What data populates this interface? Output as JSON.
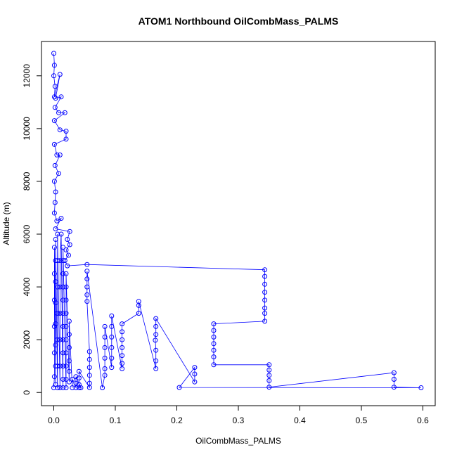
{
  "chart_data": {
    "type": "scatter",
    "title": "ATOM1 Northbound OilCombMass_PALMS",
    "xlabel": "OilCombMass_PALMS",
    "ylabel": "Altitude (m)",
    "xlim": [
      -0.02,
      0.62
    ],
    "ylim": [
      -500,
      13300
    ],
    "xticks": [
      0,
      0.1,
      0.2,
      0.3,
      0.4,
      0.5,
      0.6
    ],
    "xtick_labels": [
      "0.0",
      "0.1",
      "0.2",
      "0.3",
      "0.4",
      "0.5",
      "0.6"
    ],
    "yticks": [
      0,
      2000,
      4000,
      6000,
      8000,
      10000,
      12000
    ],
    "ytick_labels": [
      "0",
      "2000",
      "4000",
      "6000",
      "8000",
      "10000",
      "12000"
    ],
    "grid": false,
    "legend": "none",
    "marker": "open-circle",
    "connected": true,
    "series_color": "#0000ff",
    "points": [
      [
        0.0,
        12850
      ],
      [
        0.001,
        12400
      ],
      [
        0.0,
        12000
      ],
      [
        0.002,
        11600
      ],
      [
        0.001,
        11200
      ],
      [
        0.01,
        12050
      ],
      [
        0.003,
        11150
      ],
      [
        0.012,
        11200
      ],
      [
        0.002,
        10800
      ],
      [
        0.008,
        10600
      ],
      [
        0.018,
        10600
      ],
      [
        0.001,
        10300
      ],
      [
        0.01,
        9950
      ],
      [
        0.02,
        9900
      ],
      [
        0.02,
        9600
      ],
      [
        0.001,
        9400
      ],
      [
        0.005,
        9000
      ],
      [
        0.01,
        9000
      ],
      [
        0.002,
        8600
      ],
      [
        0.008,
        8300
      ],
      [
        0.001,
        8000
      ],
      [
        0.003,
        7600
      ],
      [
        0.002,
        7200
      ],
      [
        0.001,
        6800
      ],
      [
        0.005,
        6500
      ],
      [
        0.012,
        6600
      ],
      [
        0.003,
        6200
      ],
      [
        0.026,
        6100
      ],
      [
        0.022,
        5800
      ],
      [
        0.026,
        5600
      ],
      [
        0.02,
        5400
      ],
      [
        0.024,
        5200
      ],
      [
        0.018,
        5000
      ],
      [
        0.022,
        4800
      ],
      [
        0.054,
        4850
      ],
      [
        0.343,
        4650
      ],
      [
        0.343,
        4400
      ],
      [
        0.343,
        4100
      ],
      [
        0.343,
        3800
      ],
      [
        0.343,
        3500
      ],
      [
        0.343,
        3200
      ],
      [
        0.343,
        3000
      ],
      [
        0.343,
        2700
      ],
      [
        0.26,
        2600
      ],
      [
        0.26,
        2350
      ],
      [
        0.26,
        2100
      ],
      [
        0.26,
        1850
      ],
      [
        0.26,
        1600
      ],
      [
        0.26,
        1350
      ],
      [
        0.26,
        1050
      ],
      [
        0.35,
        1050
      ],
      [
        0.35,
        850
      ],
      [
        0.35,
        650
      ],
      [
        0.35,
        450
      ],
      [
        0.35,
        200
      ],
      [
        0.553,
        750
      ],
      [
        0.553,
        500
      ],
      [
        0.553,
        200
      ],
      [
        0.597,
        180
      ],
      [
        0.204,
        190
      ],
      [
        0.229,
        950
      ],
      [
        0.229,
        700
      ],
      [
        0.229,
        400
      ],
      [
        0.166,
        2800
      ],
      [
        0.166,
        2500
      ],
      [
        0.166,
        2200
      ],
      [
        0.165,
        1980
      ],
      [
        0.166,
        1600
      ],
      [
        0.166,
        1200
      ],
      [
        0.166,
        900
      ],
      [
        0.138,
        3450
      ],
      [
        0.138,
        3300
      ],
      [
        0.138,
        3000
      ],
      [
        0.111,
        2600
      ],
      [
        0.111,
        2300
      ],
      [
        0.111,
        2000
      ],
      [
        0.111,
        1700
      ],
      [
        0.111,
        1400
      ],
      [
        0.111,
        1100
      ],
      [
        0.111,
        900
      ],
      [
        0.094,
        2900
      ],
      [
        0.094,
        2500
      ],
      [
        0.094,
        2100
      ],
      [
        0.094,
        1700
      ],
      [
        0.094,
        1300
      ],
      [
        0.094,
        950
      ],
      [
        0.083,
        2500
      ],
      [
        0.083,
        2100
      ],
      [
        0.083,
        1700
      ],
      [
        0.083,
        1300
      ],
      [
        0.083,
        900
      ],
      [
        0.083,
        650
      ],
      [
        0.079,
        180
      ],
      [
        0.054,
        4600
      ],
      [
        0.054,
        4300
      ],
      [
        0.054,
        4000
      ],
      [
        0.054,
        3700
      ],
      [
        0.054,
        3450
      ],
      [
        0.058,
        1550
      ],
      [
        0.058,
        1250
      ],
      [
        0.058,
        950
      ],
      [
        0.058,
        650
      ],
      [
        0.058,
        350
      ],
      [
        0.058,
        190
      ],
      [
        0.041,
        800
      ],
      [
        0.041,
        550
      ],
      [
        0.041,
        300
      ],
      [
        0.041,
        180
      ],
      [
        0.044,
        180
      ],
      [
        0.036,
        600
      ],
      [
        0.036,
        350
      ],
      [
        0.036,
        180
      ],
      [
        0.03,
        500
      ],
      [
        0.03,
        180
      ],
      [
        0.025,
        2700
      ],
      [
        0.025,
        2200
      ],
      [
        0.025,
        1700
      ],
      [
        0.025,
        1200
      ],
      [
        0.025,
        800
      ],
      [
        0.025,
        400
      ],
      [
        0.02,
        4500
      ],
      [
        0.02,
        4000
      ],
      [
        0.02,
        3500
      ],
      [
        0.02,
        3000
      ],
      [
        0.02,
        2500
      ],
      [
        0.02,
        2000
      ],
      [
        0.02,
        1500
      ],
      [
        0.02,
        1000
      ],
      [
        0.02,
        500
      ],
      [
        0.02,
        180
      ],
      [
        0.015,
        5500
      ],
      [
        0.015,
        5000
      ],
      [
        0.015,
        4500
      ],
      [
        0.015,
        4000
      ],
      [
        0.015,
        3500
      ],
      [
        0.015,
        3000
      ],
      [
        0.015,
        2500
      ],
      [
        0.015,
        2000
      ],
      [
        0.015,
        1500
      ],
      [
        0.015,
        1000
      ],
      [
        0.015,
        500
      ],
      [
        0.015,
        180
      ],
      [
        0.012,
        6000
      ],
      [
        0.01,
        5000
      ],
      [
        0.01,
        4000
      ],
      [
        0.01,
        3000
      ],
      [
        0.01,
        2000
      ],
      [
        0.01,
        1000
      ],
      [
        0.01,
        180
      ],
      [
        0.006,
        6000
      ],
      [
        0.006,
        5000
      ],
      [
        0.006,
        4000
      ],
      [
        0.006,
        3000
      ],
      [
        0.006,
        2000
      ],
      [
        0.006,
        1000
      ],
      [
        0.006,
        180
      ],
      [
        0.003,
        5800
      ],
      [
        0.003,
        5000
      ],
      [
        0.003,
        4200
      ],
      [
        0.003,
        3400
      ],
      [
        0.003,
        2600
      ],
      [
        0.003,
        1800
      ],
      [
        0.003,
        1000
      ],
      [
        0.003,
        300
      ],
      [
        0.001,
        5500
      ],
      [
        0.001,
        4500
      ],
      [
        0.001,
        3500
      ],
      [
        0.001,
        2500
      ],
      [
        0.001,
        1500
      ],
      [
        0.001,
        600
      ],
      [
        0.0,
        180
      ]
    ]
  }
}
